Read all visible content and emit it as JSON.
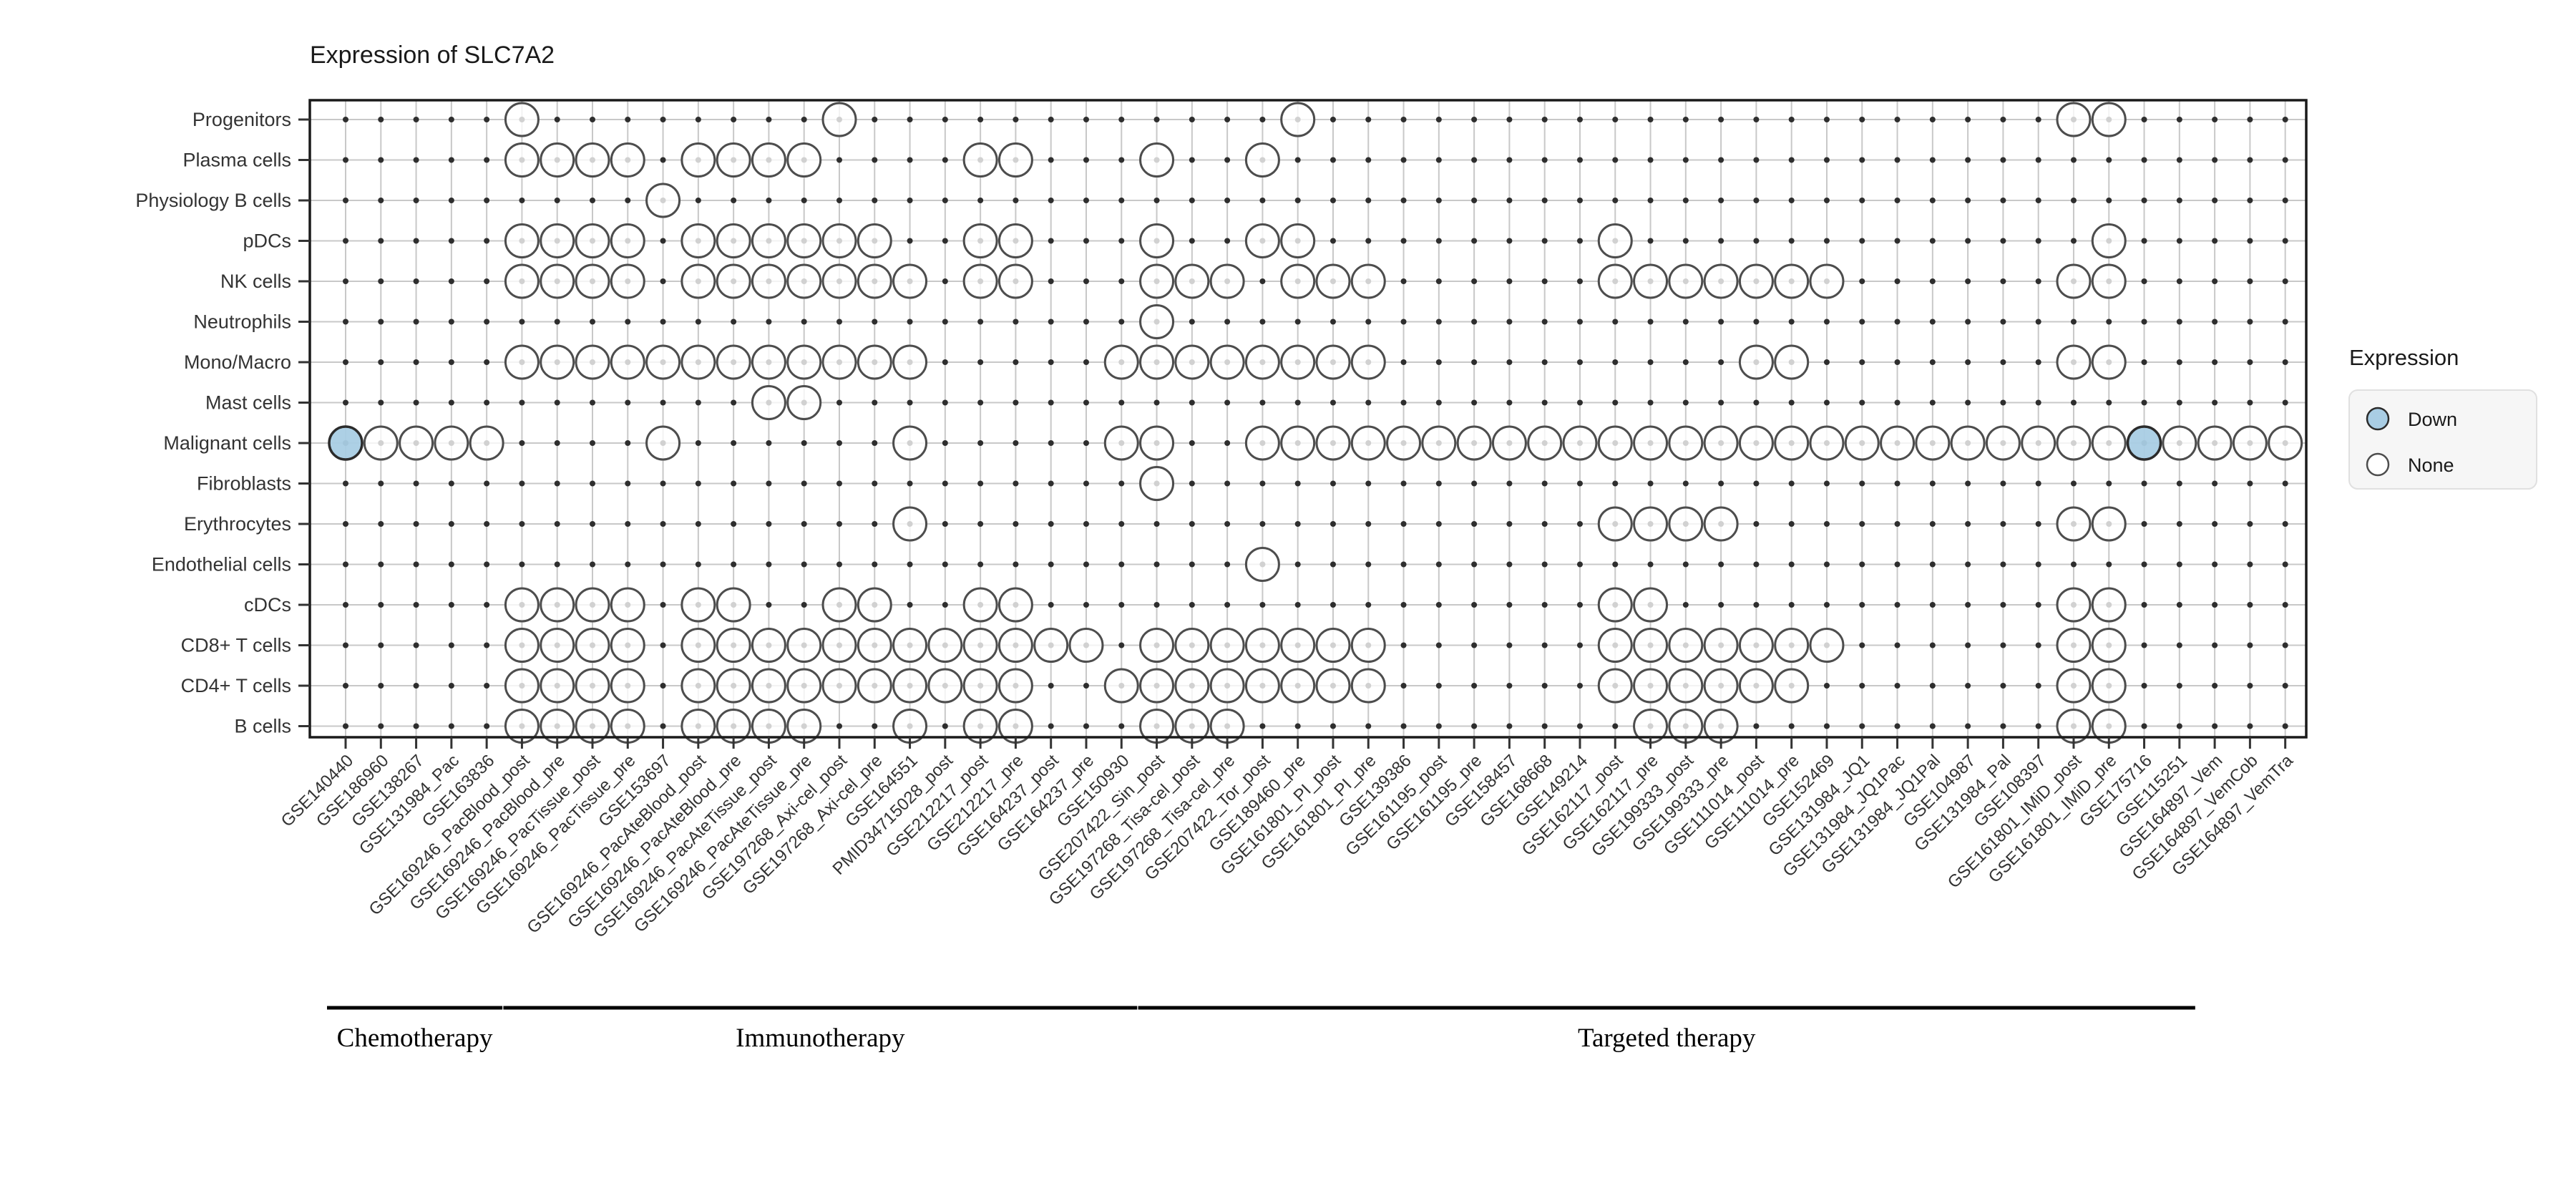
{
  "chart_data": {
    "type": "dot-matrix",
    "title": "Expression of SLC7A2",
    "grid": true,
    "rows": [
      "Progenitors",
      "Plasma cells",
      "Physiology B cells",
      "pDCs",
      "NK cells",
      "Neutrophils",
      "Mono/Macro",
      "Mast cells",
      "Malignant cells",
      "Fibroblasts",
      "Erythrocytes",
      "Endothelial cells",
      "cDCs",
      "CD8+ T cells",
      "CD4+ T cells",
      "B cells"
    ],
    "columns": [
      "GSE140440",
      "GSE186960",
      "GSE138267",
      "GSE131984_Pac",
      "GSE163836",
      "GSE169246_PacBlood_post",
      "GSE169246_PacBlood_pre",
      "GSE169246_PacTissue_post",
      "GSE169246_PacTissue_pre",
      "GSE153697",
      "GSE169246_PacAteBlood_post",
      "GSE169246_PacAteBlood_pre",
      "GSE169246_PacAteTissue_post",
      "GSE169246_PacAteTissue_pre",
      "GSE197268_Axi-cel_post",
      "GSE197268_Axi-cel_pre",
      "GSE164551",
      "PMID34715028_post",
      "GSE212217_post",
      "GSE212217_pre",
      "GSE164237_post",
      "GSE164237_pre",
      "GSE150930",
      "GSE207422_Sin_post",
      "GSE197268_Tisa-cel_post",
      "GSE197268_Tisa-cel_pre",
      "GSE207422_Tor_post",
      "GSE189460_pre",
      "GSE161801_PI_post",
      "GSE161801_PI_pre",
      "GSE139386",
      "GSE161195_post",
      "GSE161195_pre",
      "GSE158457",
      "GSE168668",
      "GSE149214",
      "GSE162117_post",
      "GSE162117_pre",
      "GSE199333_post",
      "GSE199333_pre",
      "GSE111014_post",
      "GSE111014_pre",
      "GSE152469",
      "GSE131984_JQ1",
      "GSE131984_JQ1Pac",
      "GSE131984_JQ1Pal",
      "GSE104987",
      "GSE131984_Pal",
      "GSE108397",
      "GSE161801_IMiD_post",
      "GSE161801_IMiD_pre",
      "GSE175716",
      "GSE115251",
      "GSE164897_Vem",
      "GSE164897_VemCob",
      "GSE164897_VemTra"
    ],
    "points": [
      {
        "row": "Progenitors",
        "none": [
          6,
          15,
          28,
          50,
          51
        ],
        "down": []
      },
      {
        "row": "Plasma cells",
        "none": [
          6,
          7,
          8,
          9,
          11,
          12,
          13,
          14,
          19,
          20,
          24,
          27
        ],
        "down": []
      },
      {
        "row": "Physiology B cells",
        "none": [
          10
        ],
        "down": []
      },
      {
        "row": "pDCs",
        "none": [
          6,
          7,
          8,
          9,
          11,
          12,
          13,
          14,
          15,
          16,
          19,
          20,
          24,
          27,
          28,
          37,
          51
        ],
        "down": []
      },
      {
        "row": "NK cells",
        "none": [
          6,
          7,
          8,
          9,
          11,
          12,
          13,
          14,
          15,
          16,
          17,
          19,
          20,
          24,
          25,
          26,
          28,
          29,
          30,
          37,
          38,
          39,
          40,
          41,
          42,
          43,
          50,
          51
        ],
        "down": []
      },
      {
        "row": "Neutrophils",
        "none": [
          24
        ],
        "down": []
      },
      {
        "row": "Mono/Macro",
        "none": [
          6,
          7,
          8,
          9,
          10,
          11,
          12,
          13,
          14,
          15,
          16,
          17,
          23,
          24,
          25,
          26,
          27,
          28,
          29,
          30,
          41,
          42,
          50,
          51
        ],
        "down": []
      },
      {
        "row": "Mast cells",
        "none": [
          13,
          14
        ],
        "down": []
      },
      {
        "row": "Malignant cells",
        "none": [
          2,
          3,
          4,
          5,
          10,
          17,
          23,
          24,
          27,
          28,
          29,
          30,
          31,
          32,
          33,
          34,
          35,
          36,
          37,
          38,
          39,
          40,
          41,
          42,
          43,
          44,
          45,
          46,
          47,
          48,
          49,
          50,
          51,
          53,
          54,
          55,
          56
        ],
        "down": [
          1,
          52
        ]
      },
      {
        "row": "Fibroblasts",
        "none": [
          24
        ],
        "down": []
      },
      {
        "row": "Erythrocytes",
        "none": [
          17,
          37,
          38,
          39,
          40,
          50,
          51
        ],
        "down": []
      },
      {
        "row": "Endothelial cells",
        "none": [
          27
        ],
        "down": []
      },
      {
        "row": "cDCs",
        "none": [
          6,
          7,
          8,
          9,
          11,
          12,
          15,
          16,
          19,
          20,
          37,
          38,
          50,
          51
        ],
        "down": []
      },
      {
        "row": "CD8+ T cells",
        "none": [
          6,
          7,
          8,
          9,
          11,
          12,
          13,
          14,
          15,
          16,
          17,
          18,
          19,
          20,
          21,
          22,
          24,
          25,
          26,
          27,
          28,
          29,
          30,
          37,
          38,
          39,
          40,
          41,
          42,
          43,
          50,
          51
        ],
        "down": []
      },
      {
        "row": "CD4+ T cells",
        "none": [
          6,
          7,
          8,
          9,
          11,
          12,
          13,
          14,
          15,
          16,
          17,
          18,
          19,
          20,
          23,
          24,
          25,
          26,
          27,
          28,
          29,
          30,
          37,
          38,
          39,
          40,
          41,
          42,
          50,
          51
        ],
        "down": []
      },
      {
        "row": "B cells",
        "none": [
          6,
          7,
          8,
          9,
          11,
          12,
          13,
          14,
          17,
          19,
          20,
          24,
          25,
          26,
          38,
          39,
          40,
          50,
          51
        ],
        "down": []
      }
    ],
    "groups": [
      {
        "label": "Chemotherapy",
        "col_start": 1,
        "col_end": 5
      },
      {
        "label": "Immunotherapy",
        "col_start": 6,
        "col_end": 23
      },
      {
        "label": "Targeted therapy",
        "col_start": 24,
        "col_end": 53
      }
    ],
    "legend": {
      "title": "Expression",
      "entries": [
        {
          "label": "Down",
          "fill": "#a9cde4"
        },
        {
          "label": "None",
          "fill": "#ffffff"
        }
      ]
    },
    "colors": {
      "down_fill": "#a9cde4",
      "none_fill": "#ffffff",
      "circle_stroke": "#4d4d4d",
      "down_stroke": "#2b2b2b",
      "grid": "#c8c8c8",
      "panel_border": "#1a1a1a",
      "tick": "#333333",
      "axis_text": "#333333",
      "title_text": "#1a1a1a",
      "point_dot": "#2e2e2e",
      "legend_box_fill": "#f6f6f6",
      "legend_box_stroke": "#e0e0e0",
      "group_line": "#000000"
    }
  }
}
